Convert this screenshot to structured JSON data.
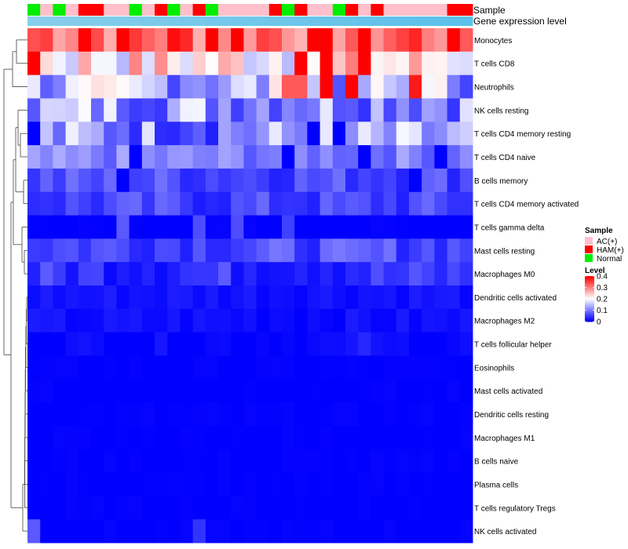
{
  "chart_data": {
    "type": "heatmap",
    "title": "",
    "annotations": {
      "sample_label": "Sample",
      "expression_label": "Gene expression level"
    },
    "sample_groups": [
      "Normal",
      "AC(+)",
      "Normal",
      "AC(+)",
      "HAM(+)",
      "HAM(+)",
      "AC(+)",
      "AC(+)",
      "Normal",
      "AC(+)",
      "HAM(+)",
      "Normal",
      "AC(+)",
      "HAM(+)",
      "Normal",
      "AC(+)",
      "AC(+)",
      "AC(+)",
      "AC(+)",
      "HAM(+)",
      "Normal",
      "HAM(+)",
      "AC(+)",
      "AC(+)",
      "Normal",
      "HAM(+)",
      "AC(+)",
      "HAM(+)",
      "AC(+)",
      "AC(+)",
      "AC(+)",
      "AC(+)",
      "AC(+)",
      "HAM(+)",
      "HAM(+)"
    ],
    "row_labels": [
      "Monocytes",
      "T cells CD8",
      "Neutrophils",
      "NK cells resting",
      "T cells CD4 memory resting",
      "T cells CD4 naive",
      "B cells memory",
      "T cells CD4 memory activated",
      "T cells gamma delta",
      "Mast cells resting",
      "Macrophages M0",
      "Dendritic cells activated",
      "Macrophages M2",
      "T cells follicular helper",
      "Eosinophils",
      "Mast cells activated",
      "Dendritic cells resting",
      "Macrophages M1",
      "B cells naive",
      "Plasma cells",
      "T cells regulatory  Tregs",
      "NK cells activated"
    ],
    "row_base": [
      0.34,
      0.22,
      0.14,
      0.13,
      0.11,
      0.1,
      0.06,
      0.05,
      0.0,
      0.06,
      0.04,
      0.015,
      0.01,
      0.005,
      0,
      0,
      0,
      0,
      0,
      0,
      0,
      0
    ],
    "special_cells": [
      {
        "row": 0,
        "col": 4,
        "v": 0.4
      },
      {
        "row": 0,
        "col": 11,
        "v": 0.39
      },
      {
        "row": 0,
        "col": 14,
        "v": 0.4
      },
      {
        "row": 0,
        "col": 16,
        "v": 0.4
      },
      {
        "row": 1,
        "col": 0,
        "v": 0.4
      },
      {
        "row": 1,
        "col": 21,
        "v": 0.4
      },
      {
        "row": 1,
        "col": 23,
        "v": 0.4
      },
      {
        "row": 1,
        "col": 26,
        "v": 0.4
      },
      {
        "row": 2,
        "col": 20,
        "v": 0.33
      },
      {
        "row": 2,
        "col": 21,
        "v": 0.33
      },
      {
        "row": 2,
        "col": 23,
        "v": 0.4
      },
      {
        "row": 2,
        "col": 25,
        "v": 0.4
      },
      {
        "row": 2,
        "col": 30,
        "v": 0.38
      },
      {
        "row": 4,
        "col": 0,
        "v": 0.0
      },
      {
        "row": 4,
        "col": 22,
        "v": 0.0
      },
      {
        "row": 4,
        "col": 24,
        "v": 0.0
      },
      {
        "row": 5,
        "col": 8,
        "v": 0.0
      },
      {
        "row": 5,
        "col": 20,
        "v": 0.0
      },
      {
        "row": 5,
        "col": 26,
        "v": 0.0
      },
      {
        "row": 5,
        "col": 32,
        "v": 0.0
      },
      {
        "row": 6,
        "col": 7,
        "v": 0.0
      },
      {
        "row": 6,
        "col": 30,
        "v": 0.0
      },
      {
        "row": 8,
        "col": 7,
        "v": 0.07
      },
      {
        "row": 8,
        "col": 13,
        "v": 0.06
      },
      {
        "row": 8,
        "col": 16,
        "v": 0.06
      },
      {
        "row": 8,
        "col": 20,
        "v": 0.05
      },
      {
        "row": 13,
        "col": 26,
        "v": 0.03
      },
      {
        "row": 21,
        "col": 0,
        "v": 0.07
      },
      {
        "row": 21,
        "col": 13,
        "v": 0.04
      }
    ],
    "color_scale": {
      "low": "#0000FF",
      "mid": "#FFFFFF",
      "high": "#FF0000",
      "range": [
        0,
        0.4
      ]
    },
    "legend": {
      "sample_title": "Sample",
      "sample_entries": [
        {
          "label": "AC(+)",
          "color": "#FFC0CB"
        },
        {
          "label": "HAM(+)",
          "color": "#FF0000"
        },
        {
          "label": "Normal",
          "color": "#00EE00"
        }
      ],
      "level_title": "Level",
      "level_ticks": [
        "0.4",
        "0.3",
        "0.2",
        "0.1",
        "0"
      ],
      "level_tick_values": [
        0.4,
        0.3,
        0.2,
        0.1,
        0
      ]
    },
    "expression_bar_colors": [
      "#87CEEB",
      "#5BC0EB"
    ]
  }
}
